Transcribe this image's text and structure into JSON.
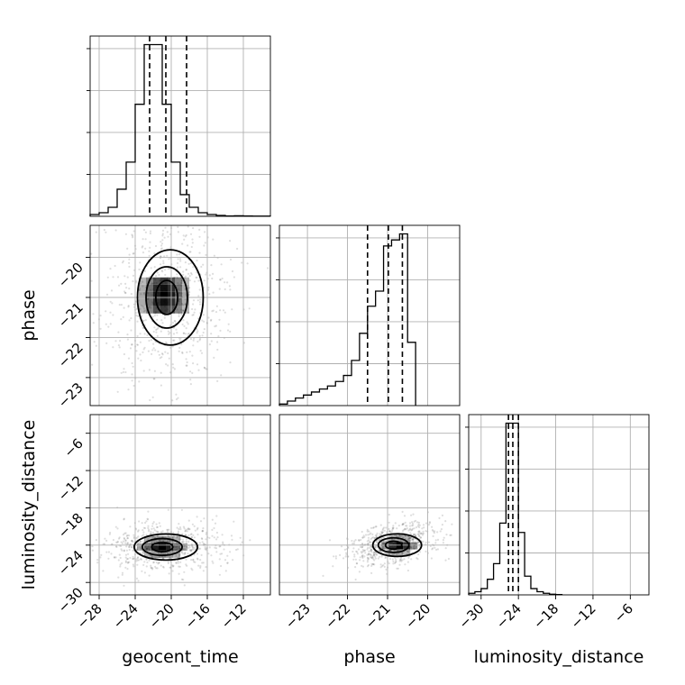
{
  "chart_data": {
    "type": "corner",
    "parameters": [
      "geocent_time",
      "phase",
      "luminosity_distance"
    ],
    "axis_labels": {
      "geocent_time": "geocent_time",
      "phase": "phase",
      "luminosity_distance": "luminosity_distance"
    },
    "axes": {
      "geocent_time": {
        "range": [
          -29,
          -9
        ],
        "ticks": [
          -28,
          -24,
          -20,
          -16,
          -12
        ]
      },
      "phase": {
        "range": [
          -23.7,
          -19.2
        ],
        "ticks": [
          -23,
          -22,
          -21,
          -20
        ]
      },
      "luminosity_distance": {
        "range": [
          -32,
          -3
        ],
        "ticks": [
          -30,
          -24,
          -18,
          -12,
          -6
        ]
      }
    },
    "grid": true,
    "histograms": [
      {
        "parameter": "geocent_time",
        "bin_edges": [
          -29,
          -28,
          -27,
          -26,
          -25,
          -24,
          -23,
          -22,
          -21,
          -20,
          -19,
          -18,
          -17,
          -16,
          -15,
          -14,
          -13,
          -12,
          -11,
          -10,
          -9
        ],
        "counts": [
          1,
          2,
          5,
          15,
          30,
          62,
          95,
          95,
          62,
          30,
          12,
          5,
          2,
          1,
          0.5,
          0.2,
          0.3,
          0.2,
          0.1,
          0.1
        ],
        "quantiles": [
          -22.4,
          -20.6,
          -18.3
        ]
      },
      {
        "parameter": "phase",
        "bin_edges": [
          -23.7,
          -23.5,
          -23.3,
          -23.1,
          -22.9,
          -22.7,
          -22.5,
          -22.3,
          -22.1,
          -21.9,
          -21.7,
          -21.5,
          -21.3,
          -21.1,
          -20.9,
          -20.7,
          -20.5,
          -20.3
        ],
        "counts": [
          0.5,
          1.5,
          2.5,
          3.5,
          4.5,
          5.5,
          6.5,
          8,
          10,
          15,
          24,
          33,
          38,
          53,
          55,
          57,
          21
        ],
        "quantiles": [
          -21.5,
          -20.98,
          -20.63
        ]
      },
      {
        "parameter": "luminosity_distance",
        "bin_edges": [
          -32,
          -31,
          -30,
          -29,
          -28,
          -27,
          -26,
          -25,
          -24,
          -23,
          -22,
          -21,
          -20,
          -19,
          -18,
          -17
        ],
        "counts": [
          0.5,
          1,
          2,
          5,
          10,
          23,
          55,
          55,
          20,
          6,
          2,
          1,
          0.5,
          0.2,
          0.1
        ],
        "quantiles": [
          -25.6,
          -24.9,
          -24.0
        ]
      }
    ],
    "pairs": [
      {
        "x": "geocent_time",
        "y": "phase",
        "center": [
          -20.5,
          -21.0
        ],
        "spread": [
          2.7,
          0.85
        ],
        "density_peak": [
          -20.8,
          -20.95
        ]
      },
      {
        "x": "geocent_time",
        "y": "luminosity_distance",
        "center": [
          -21.0,
          -24.3
        ],
        "spread": [
          2.6,
          1.5
        ],
        "density_peak": [
          -21.0,
          -24.3
        ]
      },
      {
        "x": "phase",
        "y": "luminosity_distance",
        "center": [
          -20.85,
          -24.0
        ],
        "spread": [
          0.45,
          1.3
        ],
        "density_peak": [
          -20.7,
          -24.1
        ]
      }
    ]
  }
}
